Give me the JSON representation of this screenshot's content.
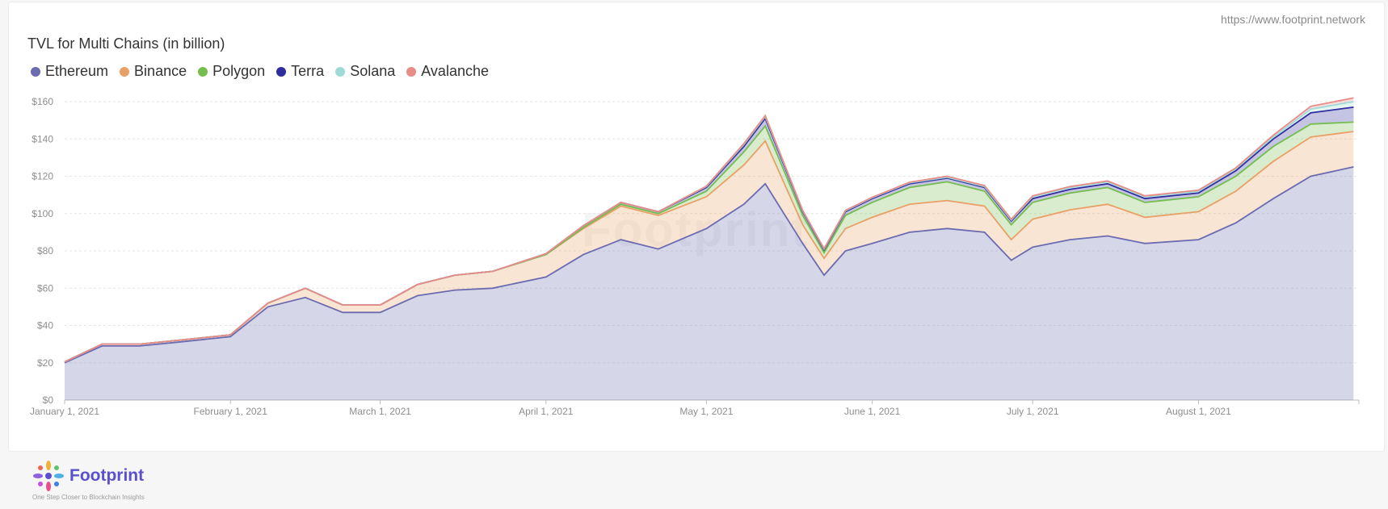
{
  "header": {
    "site_url": "https://www.footprint.network"
  },
  "footer": {
    "brand": "Footprint",
    "tagline": "One Step Closer to Blockchain Insights"
  },
  "watermark": "Footprint",
  "chart_data": {
    "type": "area",
    "stacked": true,
    "title": "TVL for Multi Chains (in billion)",
    "xlabel": "",
    "ylabel": "",
    "ylim": [
      0,
      160
    ],
    "yticks": [
      "$0",
      "$20",
      "$40",
      "$60",
      "$80",
      "$100",
      "$120",
      "$140",
      "$160"
    ],
    "xticks": [
      "January 1, 2021",
      "February 1, 2021",
      "March 1, 2021",
      "April 1, 2021",
      "May 1, 2021",
      "June 1, 2021",
      "July 1, 2021",
      "August 1, 2021"
    ],
    "x": [
      "2021-01-01",
      "2021-01-08",
      "2021-01-15",
      "2021-01-22",
      "2021-02-01",
      "2021-02-08",
      "2021-02-15",
      "2021-02-22",
      "2021-03-01",
      "2021-03-08",
      "2021-03-15",
      "2021-03-22",
      "2021-04-01",
      "2021-04-08",
      "2021-04-15",
      "2021-04-22",
      "2021-05-01",
      "2021-05-08",
      "2021-05-12",
      "2021-05-19",
      "2021-05-23",
      "2021-05-27",
      "2021-06-01",
      "2021-06-08",
      "2021-06-15",
      "2021-06-22",
      "2021-06-27",
      "2021-07-01",
      "2021-07-08",
      "2021-07-15",
      "2021-07-22",
      "2021-08-01",
      "2021-08-08",
      "2021-08-15",
      "2021-08-22",
      "2021-08-30"
    ],
    "grid": true,
    "legend_position": "top-left",
    "series": [
      {
        "name": "Ethereum",
        "color": "#6b6bb0",
        "values": [
          20,
          29,
          29,
          31,
          34,
          50,
          55,
          47,
          47,
          56,
          59,
          60,
          66,
          78,
          86,
          81,
          92,
          105,
          116,
          84,
          67,
          80,
          84,
          90,
          92,
          90,
          75,
          82,
          86,
          88,
          84,
          86,
          95,
          108,
          120,
          125
        ]
      },
      {
        "name": "Binance",
        "color": "#e9a066",
        "values": [
          0.5,
          1,
          1,
          1,
          1,
          2,
          5,
          4,
          4,
          6,
          8,
          9,
          12,
          14,
          18,
          18,
          17,
          21,
          23,
          10,
          9,
          12,
          14,
          15,
          15,
          14,
          11,
          15,
          16,
          17,
          14,
          15,
          17,
          20,
          21,
          19
        ]
      },
      {
        "name": "Polygon",
        "color": "#76bd4f",
        "values": [
          0,
          0,
          0,
          0,
          0,
          0,
          0,
          0,
          0,
          0,
          0,
          0,
          0,
          0.5,
          1,
          1,
          3,
          7,
          8,
          5,
          3,
          7,
          8,
          9,
          10,
          8,
          8,
          9,
          9,
          9,
          8,
          8,
          8,
          8,
          7,
          5
        ]
      },
      {
        "name": "Terra",
        "color": "#2e2e9c",
        "values": [
          0,
          0,
          0,
          0,
          0,
          0,
          0,
          0,
          0,
          0,
          0,
          0,
          0.5,
          1,
          1,
          1,
          2,
          3,
          4,
          2,
          1.5,
          2,
          2,
          2,
          2,
          2,
          2,
          2,
          2,
          2,
          2,
          2,
          3,
          4,
          6,
          8
        ]
      },
      {
        "name": "Solana",
        "color": "#9edad6",
        "values": [
          0,
          0,
          0,
          0,
          0,
          0,
          0,
          0,
          0,
          0,
          0,
          0,
          0,
          0,
          0,
          0,
          0.5,
          1,
          1,
          0.5,
          0.5,
          0.5,
          0.5,
          0.5,
          0.5,
          0.5,
          0.5,
          1,
          1,
          1,
          1,
          1,
          1,
          1,
          2,
          3
        ]
      },
      {
        "name": "Avalanche",
        "color": "#e88c88",
        "values": [
          0,
          0,
          0,
          0,
          0,
          0,
          0,
          0,
          0,
          0,
          0,
          0,
          0,
          0,
          0,
          0,
          0.2,
          0.5,
          0.5,
          0.2,
          0.2,
          0.2,
          0.2,
          0.3,
          0.5,
          0.5,
          0.5,
          0.5,
          0.5,
          0.5,
          0.5,
          0.5,
          0.5,
          1,
          1.5,
          2
        ]
      }
    ]
  }
}
